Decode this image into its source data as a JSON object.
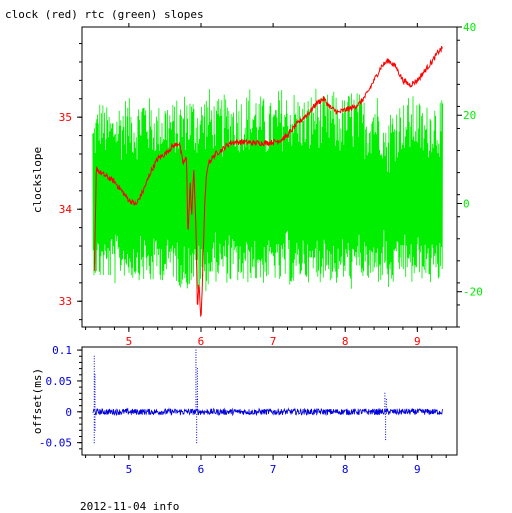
{
  "header": {
    "title": "clock (red) rtc (green) slopes"
  },
  "footer": {
    "info": "2012-11-04 info"
  },
  "colors": {
    "clock": "#ff0000",
    "rtc": "#00ee00",
    "offset": "#0000dd",
    "axis": "#000000"
  },
  "chart_data": [
    {
      "type": "line",
      "title": "clock (red) rtc (green) slopes",
      "xlabel": "",
      "ylabel": "clockslope",
      "y2label": "",
      "xlim": [
        4.35,
        9.55
      ],
      "ylim": [
        32.72,
        35.98
      ],
      "y2lim": [
        -28,
        40
      ],
      "xticks": [
        5,
        6,
        7,
        8,
        9
      ],
      "yticks": [
        33,
        34,
        35
      ],
      "y2ticks": [
        -20,
        0,
        20,
        40
      ],
      "grid": false,
      "series": [
        {
          "name": "clock",
          "axis": "left",
          "color": "#ff0000",
          "x": [
            4.52,
            4.55,
            4.6,
            4.7,
            4.8,
            4.9,
            5.0,
            5.1,
            5.2,
            5.3,
            5.4,
            5.5,
            5.6,
            5.7,
            5.75,
            5.8,
            5.82,
            5.85,
            5.87,
            5.9,
            5.93,
            5.95,
            5.97,
            6.0,
            6.02,
            6.05,
            6.07,
            6.1,
            6.2,
            6.3,
            6.4,
            6.5,
            6.6,
            6.7,
            6.8,
            6.9,
            7.0,
            7.1,
            7.2,
            7.3,
            7.4,
            7.5,
            7.6,
            7.7,
            7.8,
            7.9,
            8.0,
            8.1,
            8.2,
            8.3,
            8.4,
            8.5,
            8.6,
            8.7,
            8.8,
            8.9,
            9.0,
            9.1,
            9.2,
            9.3,
            9.35
          ],
          "y": [
            33.3,
            34.45,
            34.4,
            34.35,
            34.3,
            34.2,
            34.1,
            34.05,
            34.2,
            34.4,
            34.55,
            34.6,
            34.68,
            34.72,
            34.5,
            34.55,
            33.7,
            34.3,
            33.9,
            34.45,
            33.8,
            32.9,
            33.2,
            32.8,
            33.2,
            34.0,
            34.3,
            34.5,
            34.6,
            34.65,
            34.72,
            34.73,
            34.73,
            34.72,
            34.72,
            34.72,
            34.73,
            34.75,
            34.8,
            34.9,
            34.98,
            35.05,
            35.15,
            35.2,
            35.1,
            35.05,
            35.08,
            35.1,
            35.15,
            35.25,
            35.4,
            35.55,
            35.62,
            35.55,
            35.4,
            35.35,
            35.4,
            35.5,
            35.6,
            35.72,
            35.75
          ]
        },
        {
          "name": "rtc",
          "axis": "right",
          "color": "#00ee00",
          "x": [
            4.5,
            4.6,
            4.7,
            4.8,
            4.9,
            5.0,
            5.1,
            5.2,
            5.3,
            5.4,
            5.5,
            5.6,
            5.7,
            5.8,
            5.9,
            6.0,
            6.1,
            6.2,
            6.3,
            6.4,
            6.5,
            6.6,
            6.7,
            6.8,
            6.9,
            7.0,
            7.1,
            7.2,
            7.3,
            7.4,
            7.5,
            7.6,
            7.7,
            7.8,
            7.9,
            8.0,
            8.1,
            8.2,
            8.3,
            8.4,
            8.5,
            8.55,
            8.6,
            8.7,
            8.8,
            8.9,
            9.0,
            9.1,
            9.2,
            9.3,
            9.35
          ],
          "y": [
            -2,
            3,
            -1,
            4,
            -3,
            2,
            -2,
            3,
            -1,
            2,
            -2,
            3,
            -2,
            1,
            -3,
            2,
            -1,
            3,
            -2,
            4,
            -1,
            2,
            -3,
            3,
            -2,
            1,
            -2,
            4,
            -1,
            2,
            -3,
            3,
            -1,
            2,
            -2,
            3,
            -1,
            2,
            -3,
            1,
            -2,
            6,
            -8,
            -2,
            3,
            -1,
            2,
            -3,
            1,
            -2,
            2
          ],
          "envelope_upper": [
            20,
            24,
            22,
            21,
            25,
            24,
            23,
            26,
            24,
            22,
            25,
            23,
            24,
            26,
            25,
            24,
            27,
            23,
            25,
            24,
            26,
            24,
            28,
            25,
            24,
            23,
            27,
            25,
            26,
            24,
            25,
            27,
            24,
            26,
            25,
            24,
            27,
            25,
            24,
            26,
            25,
            15,
            22,
            24,
            23,
            25,
            24,
            22,
            24,
            25,
            23
          ],
          "envelope_lower": [
            -16,
            -18,
            -17,
            -19,
            -16,
            -18,
            -17,
            -18,
            -19,
            -17,
            -18,
            -17,
            -19,
            -20,
            -18,
            -22,
            -19,
            -18,
            -17,
            -19,
            -18,
            -20,
            -17,
            -19,
            -18,
            -17,
            -19,
            -18,
            -20,
            -17,
            -18,
            -19,
            -17,
            -18,
            -19,
            -18,
            -20,
            -17,
            -18,
            -19,
            -18,
            -16,
            -20,
            -18,
            -17,
            -19,
            -18,
            -17,
            -19,
            -18,
            -17
          ]
        }
      ]
    },
    {
      "type": "scatter",
      "title": "",
      "xlabel": "",
      "ylabel": "offset(ms)",
      "xlim": [
        4.35,
        9.55
      ],
      "ylim": [
        -0.07,
        0.105
      ],
      "xticks": [
        5,
        6,
        7,
        8,
        9
      ],
      "yticks": [
        -0.05,
        0,
        0.05,
        0.1
      ],
      "ytick_labels": [
        "-0.05",
        "0",
        "0.05",
        "0.1"
      ],
      "grid": false,
      "series": [
        {
          "name": "offset",
          "color": "#0000dd",
          "x": [
            4.52,
            4.52,
            4.53,
            4.53,
            5.93,
            5.94,
            5.95,
            5.95,
            8.55,
            8.56,
            8.57
          ],
          "y": [
            0.09,
            -0.05,
            0.06,
            -0.03,
            0.1,
            -0.05,
            0.07,
            0.02,
            0.03,
            -0.045,
            0.02
          ],
          "baseline": {
            "x_range": [
              4.5,
              9.35
            ],
            "y": 0.0,
            "noise": 0.005
          }
        }
      ]
    }
  ]
}
